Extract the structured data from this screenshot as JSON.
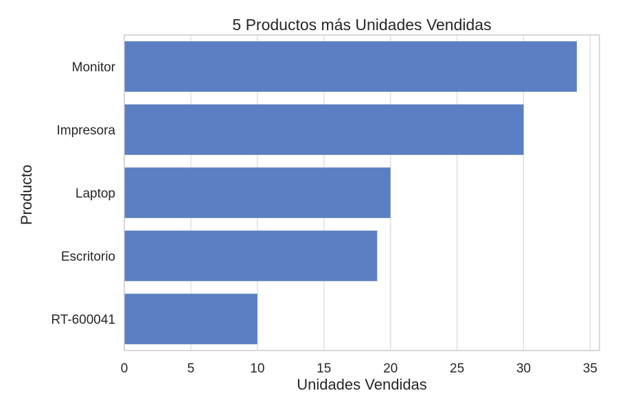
{
  "chart_data": {
    "type": "bar",
    "orientation": "horizontal",
    "title": "5 Productos más Unidades Vendidas",
    "xlabel": "Unidades Vendidas",
    "ylabel": "Producto",
    "categories": [
      "Monitor",
      "Impresora",
      "Laptop",
      "Escritorio",
      "RT-600041"
    ],
    "values": [
      34,
      30,
      20,
      19,
      10
    ],
    "xlim": [
      0,
      35.7
    ],
    "xticks": [
      0,
      5,
      10,
      15,
      20,
      25,
      30,
      35
    ],
    "grid": true,
    "legend": "none",
    "colors": {
      "bar": "#5b7fc2",
      "grid": "#dcdcdc",
      "spine": "#cccccc",
      "text": "#262626"
    }
  }
}
